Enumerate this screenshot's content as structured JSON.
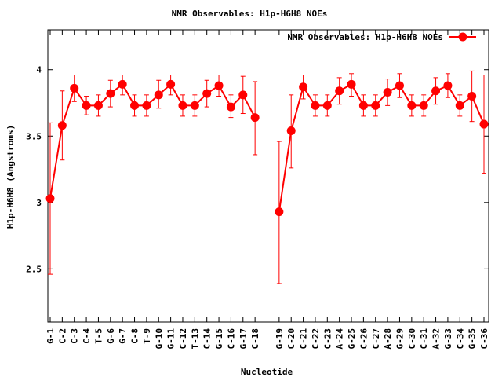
{
  "chart_data": {
    "type": "line",
    "title": "NMR Observables: H1p-H6H8 NOEs",
    "xlabel": "Nucleotide",
    "ylabel": "H1p-H6H8 (Angstroms)",
    "ylim": [
      2.1,
      4.3
    ],
    "yticks": [
      "2.5",
      "3",
      "3.5",
      "4"
    ],
    "grid": false,
    "legend_position": "top-right",
    "color": "#ff0000",
    "series": [
      {
        "name": "NMR Observables: H1p-H6H8 NOEs",
        "segments": [
          {
            "categories": [
              "G-1",
              "C-2",
              "C-3",
              "C-4",
              "T-5",
              "G-6",
              "G-7",
              "C-8",
              "T-9",
              "G-10",
              "G-11",
              "C-12",
              "T-13",
              "C-14",
              "G-15",
              "C-16",
              "G-17",
              "C-18"
            ],
            "values": [
              3.03,
              3.58,
              3.86,
              3.73,
              3.73,
              3.82,
              3.89,
              3.73,
              3.73,
              3.81,
              3.89,
              3.73,
              3.73,
              3.82,
              3.88,
              3.72,
              3.81,
              3.64
            ],
            "err_low": [
              2.46,
              3.32,
              3.76,
              3.66,
              3.65,
              3.72,
              3.81,
              3.65,
              3.65,
              3.71,
              3.81,
              3.65,
              3.65,
              3.72,
              3.8,
              3.64,
              3.67,
              3.36
            ],
            "err_high": [
              3.6,
              3.84,
              3.96,
              3.8,
              3.81,
              3.92,
              3.96,
              3.81,
              3.81,
              3.92,
              3.96,
              3.81,
              3.81,
              3.92,
              3.96,
              3.81,
              3.95,
              3.91
            ]
          },
          {
            "categories": [
              "G-19",
              "C-20",
              "C-21",
              "C-22",
              "C-23",
              "A-24",
              "G-25",
              "C-26",
              "C-27",
              "A-28",
              "G-29",
              "C-30",
              "C-31",
              "A-32",
              "G-33",
              "C-34",
              "G-35",
              "C-36"
            ],
            "values": [
              2.93,
              3.54,
              3.87,
              3.73,
              3.73,
              3.84,
              3.89,
              3.73,
              3.73,
              3.83,
              3.88,
              3.73,
              3.73,
              3.84,
              3.88,
              3.73,
              3.8,
              3.59
            ],
            "err_low": [
              2.39,
              3.26,
              3.78,
              3.65,
              3.65,
              3.74,
              3.8,
              3.65,
              3.65,
              3.73,
              3.79,
              3.65,
              3.65,
              3.74,
              3.79,
              3.65,
              3.61,
              3.22
            ],
            "err_high": [
              3.46,
              3.81,
              3.96,
              3.81,
              3.81,
              3.94,
              3.97,
              3.81,
              3.81,
              3.93,
              3.97,
              3.81,
              3.81,
              3.94,
              3.97,
              3.81,
              3.99,
              3.96
            ]
          }
        ]
      }
    ]
  }
}
